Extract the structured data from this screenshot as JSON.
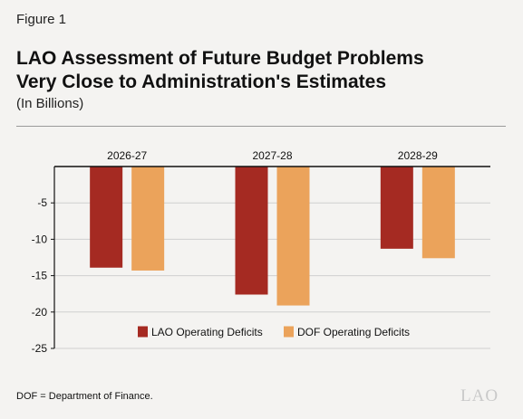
{
  "figure_label": "Figure 1",
  "title_line1": "LAO Assessment of Future Budget Problems",
  "title_line2": "Very Close to Administration's Estimates",
  "subtitle": "(In Billions)",
  "footnote": "DOF = Department of Finance.",
  "logo_text": "LAO",
  "chart_data": {
    "type": "bar",
    "categories": [
      "2026-27",
      "2027-28",
      "2028-29"
    ],
    "series": [
      {
        "name": "LAO Operating Deficits",
        "values": [
          -13.9,
          -17.6,
          -11.3
        ],
        "color": "#a52a22"
      },
      {
        "name": "DOF Operating Deficits",
        "values": [
          -14.3,
          -19.1,
          -12.6
        ],
        "color": "#eba35b"
      }
    ],
    "ylim": [
      -25,
      0
    ],
    "yticks": [
      -5,
      -10,
      -15,
      -20,
      -25
    ],
    "ytick_labels": [
      "-5",
      "-10",
      "-15",
      "-20",
      "-25"
    ],
    "grid": true,
    "legend_position": "bottom-center",
    "category_labels_position": "top"
  }
}
